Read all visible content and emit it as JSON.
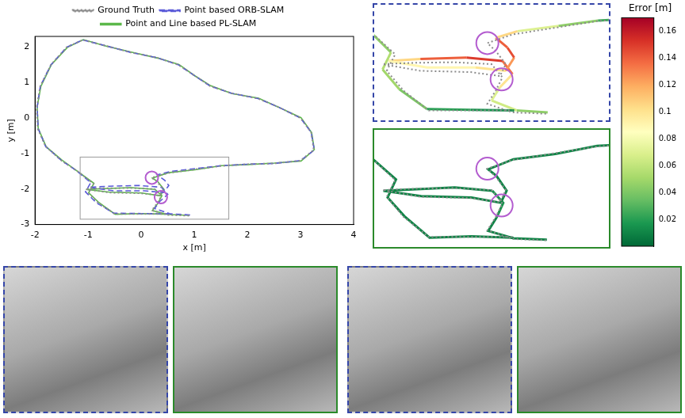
{
  "chart_data": [
    {
      "type": "line",
      "x_label": "x [m]",
      "y_label": "y [m]",
      "xlim": [
        -2,
        4
      ],
      "ylim": [
        -3,
        2.3
      ],
      "xticks": [
        -2,
        -1,
        0,
        1,
        2,
        3,
        4
      ],
      "yticks": [
        -3,
        -2,
        -1,
        0,
        1,
        2
      ],
      "grid": false,
      "legend": "top",
      "highlights": [
        {
          "x": 0.2,
          "y": -1.68
        },
        {
          "x": 0.37,
          "y": -2.23
        }
      ],
      "series": [
        {
          "name": "Ground Truth",
          "color": "#8c8c8c",
          "line_style": "dotted",
          "x": [
            0.9,
            0.5,
            0.2,
            0.3,
            0.38,
            0.25,
            -0.2,
            -0.7,
            -1.05,
            -0.6,
            0.0,
            0.35,
            0.42,
            0.3,
            0.2,
            0.5,
            1.0,
            1.5,
            2.0,
            2.5,
            3.0,
            3.25,
            3.2,
            3.0,
            2.6,
            2.2,
            1.7,
            1.3,
            1.0,
            0.7,
            0.3,
            -0.2,
            -0.7,
            -1.1,
            -1.4,
            -1.7,
            -1.9,
            -1.97,
            -1.95,
            -1.8,
            -1.5,
            -1.2,
            -0.9,
            -1.0,
            -0.8,
            -0.5,
            0.0,
            0.5
          ],
          "y": [
            -2.75,
            -2.73,
            -2.6,
            -2.4,
            -2.2,
            -2.0,
            -1.97,
            -1.98,
            -2.0,
            -2.1,
            -2.12,
            -2.18,
            -2.0,
            -1.8,
            -1.68,
            -1.55,
            -1.45,
            -1.35,
            -1.3,
            -1.28,
            -1.2,
            -0.9,
            -0.4,
            0.0,
            0.3,
            0.55,
            0.7,
            0.9,
            1.2,
            1.5,
            1.7,
            1.85,
            2.05,
            2.2,
            2.0,
            1.5,
            0.9,
            0.3,
            -0.3,
            -0.8,
            -1.2,
            -1.5,
            -1.85,
            -2.1,
            -2.4,
            -2.7,
            -2.7,
            -2.7
          ]
        },
        {
          "name": "Point based ORB-SLAM",
          "color": "#5a5ad8",
          "line_style": "dashed",
          "x": [
            0.92,
            0.55,
            0.25,
            0.35,
            0.5,
            0.38,
            -0.05,
            -0.6,
            -0.98,
            -0.52,
            0.06,
            0.42,
            0.52,
            0.44,
            0.3,
            0.56,
            1.05,
            1.52,
            2.02,
            2.5,
            3.0,
            3.26,
            3.2,
            3.0,
            2.6,
            2.2,
            1.7,
            1.3,
            1.0,
            0.7,
            0.3,
            -0.2,
            -0.7,
            -1.1,
            -1.4,
            -1.7,
            -1.9,
            -1.96,
            -1.94,
            -1.8,
            -1.5,
            -1.22,
            -0.95,
            -1.05,
            -0.85,
            -0.52,
            0.0,
            0.52
          ],
          "y": [
            -2.73,
            -2.7,
            -2.55,
            -2.35,
            -2.15,
            -1.95,
            -1.9,
            -1.92,
            -1.95,
            -2.05,
            -2.05,
            -2.1,
            -1.9,
            -1.75,
            -1.6,
            -1.5,
            -1.42,
            -1.34,
            -1.3,
            -1.28,
            -1.2,
            -0.9,
            -0.4,
            0.0,
            0.3,
            0.55,
            0.7,
            0.9,
            1.2,
            1.5,
            1.7,
            1.85,
            2.05,
            2.2,
            2.0,
            1.5,
            0.9,
            0.3,
            -0.3,
            -0.8,
            -1.2,
            -1.48,
            -1.82,
            -2.08,
            -2.38,
            -2.68,
            -2.69,
            -2.7
          ]
        },
        {
          "name": "Point and Line based PL-SLAM",
          "color": "#5cb84a",
          "line_style": "solid",
          "x": [
            0.91,
            0.51,
            0.21,
            0.31,
            0.39,
            0.26,
            -0.19,
            -0.69,
            -1.04,
            -0.59,
            0.01,
            0.36,
            0.43,
            0.31,
            0.21,
            0.51,
            1.01,
            1.51,
            2.01,
            2.51,
            3.01,
            3.26,
            3.21,
            3.01,
            2.61,
            2.21,
            1.71,
            1.31,
            1.01,
            0.71,
            0.31,
            -0.19,
            -0.69,
            -1.09,
            -1.39,
            -1.69,
            -1.89,
            -1.96,
            -1.94,
            -1.79,
            -1.49,
            -1.19,
            -0.89,
            -0.99,
            -0.79,
            -0.49,
            0.01,
            0.51
          ],
          "y": [
            -2.74,
            -2.72,
            -2.61,
            -2.41,
            -2.19,
            -2.01,
            -1.96,
            -1.99,
            -2.01,
            -2.09,
            -2.11,
            -2.19,
            -2.01,
            -1.79,
            -1.69,
            -1.54,
            -1.46,
            -1.34,
            -1.31,
            -1.27,
            -1.21,
            -0.89,
            -0.41,
            0.01,
            0.29,
            0.56,
            0.69,
            0.91,
            1.19,
            1.51,
            1.69,
            1.86,
            2.04,
            2.21,
            1.99,
            1.51,
            0.89,
            0.31,
            -0.29,
            -0.81,
            -1.19,
            -1.51,
            -1.84,
            -2.11,
            -2.39,
            -2.71,
            -2.69,
            -2.71
          ]
        }
      ]
    },
    {
      "type": "line",
      "tick_labels": false,
      "xlim": [
        -1.15,
        1.65
      ],
      "ylim": [
        -2.85,
        -1.1
      ],
      "highlights": [
        {
          "x": 0.2,
          "y": -1.68
        },
        {
          "x": 0.37,
          "y": -2.23
        }
      ],
      "colorbar": {
        "label": "Error [m]",
        "range": [
          0,
          0.17
        ],
        "ticks": [
          0.02,
          0.04,
          0.06,
          0.08,
          0.1,
          0.12,
          0.14,
          0.16
        ]
      },
      "series": [
        {
          "color": "#8c8c8c",
          "line_style": "dotted",
          "x": [
            0.9,
            0.5,
            0.2,
            0.3,
            0.38,
            0.25,
            -0.2,
            -0.7,
            -1.05,
            -0.6,
            0.0,
            0.35,
            0.42,
            0.3,
            0.2,
            0.5,
            1.0,
            1.5,
            2.0,
            null,
            -1.5,
            -1.2,
            -0.9,
            -1.0,
            -0.8,
            -0.5,
            0.0,
            0.5
          ],
          "y": [
            -2.75,
            -2.73,
            -2.6,
            -2.4,
            -2.2,
            -2.0,
            -1.97,
            -1.98,
            -2.0,
            -2.1,
            -2.12,
            -2.18,
            -2.0,
            -1.8,
            -1.68,
            -1.55,
            -1.45,
            -1.35,
            -1.3,
            null,
            -1.2,
            -1.5,
            -1.85,
            -2.1,
            -2.4,
            -2.7,
            -2.7,
            -2.7
          ]
        },
        {
          "line_style": "solid",
          "x": [
            0.92,
            0.55,
            0.25,
            0.35,
            0.5,
            0.38,
            -0.05,
            -0.6,
            -0.98,
            -0.52,
            0.06,
            0.42,
            0.52,
            0.44,
            0.3,
            0.56,
            1.05,
            1.52,
            2.02,
            null,
            -1.5,
            -1.22,
            -0.95,
            -1.05,
            -0.85,
            -0.52,
            0.0,
            0.52
          ],
          "y": [
            -2.73,
            -2.7,
            -2.55,
            -2.35,
            -2.15,
            -1.95,
            -1.9,
            -1.92,
            -1.95,
            -2.05,
            -2.05,
            -2.1,
            -1.9,
            -1.75,
            -1.6,
            -1.5,
            -1.42,
            -1.34,
            -1.3,
            null,
            -1.2,
            -1.48,
            -1.82,
            -2.08,
            -2.38,
            -2.68,
            -2.69,
            -2.7
          ],
          "error": [
            0.03,
            0.06,
            0.07,
            0.07,
            0.13,
            0.14,
            0.16,
            0.12,
            0.09,
            0.09,
            0.09,
            0.11,
            0.14,
            0.15,
            0.13,
            0.08,
            0.06,
            0.03,
            0.02,
            null,
            0.02,
            0.03,
            0.06,
            0.05,
            0.05,
            0.03,
            0.01,
            0.02
          ]
        }
      ]
    },
    {
      "type": "line",
      "tick_labels": false,
      "xlim": [
        -1.15,
        1.65
      ],
      "ylim": [
        -2.85,
        -1.1
      ],
      "highlights": [
        {
          "x": 0.2,
          "y": -1.68
        },
        {
          "x": 0.37,
          "y": -2.23
        }
      ],
      "series": [
        {
          "color": "#8c8c8c",
          "line_style": "dotted",
          "x": [
            0.9,
            0.5,
            0.2,
            0.3,
            0.38,
            0.25,
            -0.2,
            -0.7,
            -1.05,
            -0.6,
            0.0,
            0.35,
            0.42,
            0.3,
            0.2,
            0.5,
            1.0,
            1.5,
            2.0,
            null,
            -1.5,
            -1.2,
            -0.9,
            -1.0,
            -0.8,
            -0.5,
            0.0,
            0.5
          ],
          "y": [
            -2.75,
            -2.73,
            -2.6,
            -2.4,
            -2.2,
            -2.0,
            -1.97,
            -1.98,
            -2.0,
            -2.1,
            -2.12,
            -2.18,
            -2.0,
            -1.8,
            -1.68,
            -1.55,
            -1.45,
            -1.35,
            -1.3,
            null,
            -1.2,
            -1.5,
            -1.85,
            -2.1,
            -2.4,
            -2.7,
            -2.7,
            -2.7
          ]
        },
        {
          "line_style": "solid",
          "x": [
            0.91,
            0.51,
            0.21,
            0.31,
            0.39,
            0.26,
            -0.19,
            -0.69,
            -1.04,
            -0.59,
            0.01,
            0.36,
            0.43,
            0.31,
            0.21,
            0.51,
            1.01,
            1.51,
            2.01,
            null,
            -1.49,
            -1.19,
            -0.89,
            -0.99,
            -0.79,
            -0.49,
            0.01,
            0.51
          ],
          "y": [
            -2.74,
            -2.72,
            -2.61,
            -2.41,
            -2.19,
            -2.01,
            -1.96,
            -1.99,
            -2.01,
            -2.09,
            -2.11,
            -2.19,
            -2.01,
            -1.79,
            -1.69,
            -1.54,
            -1.46,
            -1.34,
            -1.31,
            null,
            -1.19,
            -1.51,
            -1.84,
            -2.11,
            -2.39,
            -2.71,
            -2.69,
            -2.71
          ],
          "error": [
            0.01,
            0.01,
            0.01,
            0.01,
            0.02,
            0.01,
            0.01,
            0.01,
            0.01,
            0.01,
            0.01,
            0.01,
            0.01,
            0.01,
            0.01,
            0.01,
            0.01,
            0.01,
            0.01,
            null,
            0.01,
            0.01,
            0.01,
            0.01,
            0.01,
            0.01,
            0.01,
            0.01
          ]
        }
      ]
    }
  ]
}
